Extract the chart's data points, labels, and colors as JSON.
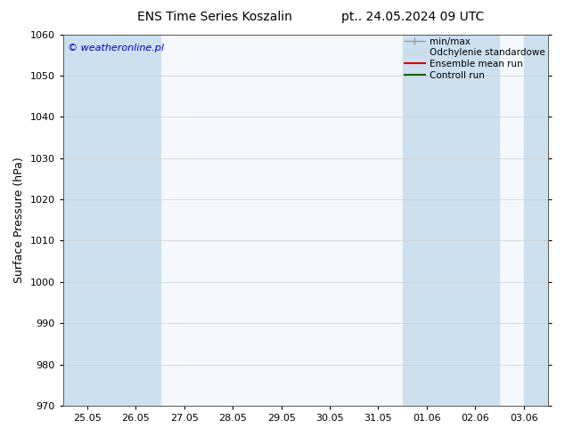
{
  "title_left": "ENS Time Series Koszalin",
  "title_right": "pt.. 24.05.2024 09 UTC",
  "ylabel": "Surface Pressure (hPa)",
  "ylim": [
    970,
    1060
  ],
  "yticks": [
    970,
    980,
    990,
    1000,
    1010,
    1020,
    1030,
    1040,
    1050,
    1060
  ],
  "xtick_labels": [
    "25.05",
    "26.05",
    "27.05",
    "28.05",
    "29.05",
    "30.05",
    "31.05",
    "01.06",
    "02.06",
    "03.06"
  ],
  "bg_color": "#ffffff",
  "plot_bg_color": "#f5f9fd",
  "band_color": "#cce0f0",
  "band_ranges": [
    [
      -0.5,
      0.5
    ],
    [
      0.5,
      1.5
    ],
    [
      6.5,
      7.5
    ],
    [
      7.5,
      8.5
    ],
    [
      9.0,
      9.5
    ]
  ],
  "watermark": "© weatheronline.pl",
  "watermark_color": "#0000bb",
  "legend_labels": [
    "min/max",
    "Odchylenie standardowe",
    "Ensemble mean run",
    "Controll run"
  ],
  "legend_line_color": "#aaaaaa",
  "legend_band_color": "#c8dce8",
  "ensemble_color": "#dd0000",
  "control_color": "#006600",
  "title_fontsize": 10,
  "axis_label_fontsize": 9,
  "tick_fontsize": 8
}
